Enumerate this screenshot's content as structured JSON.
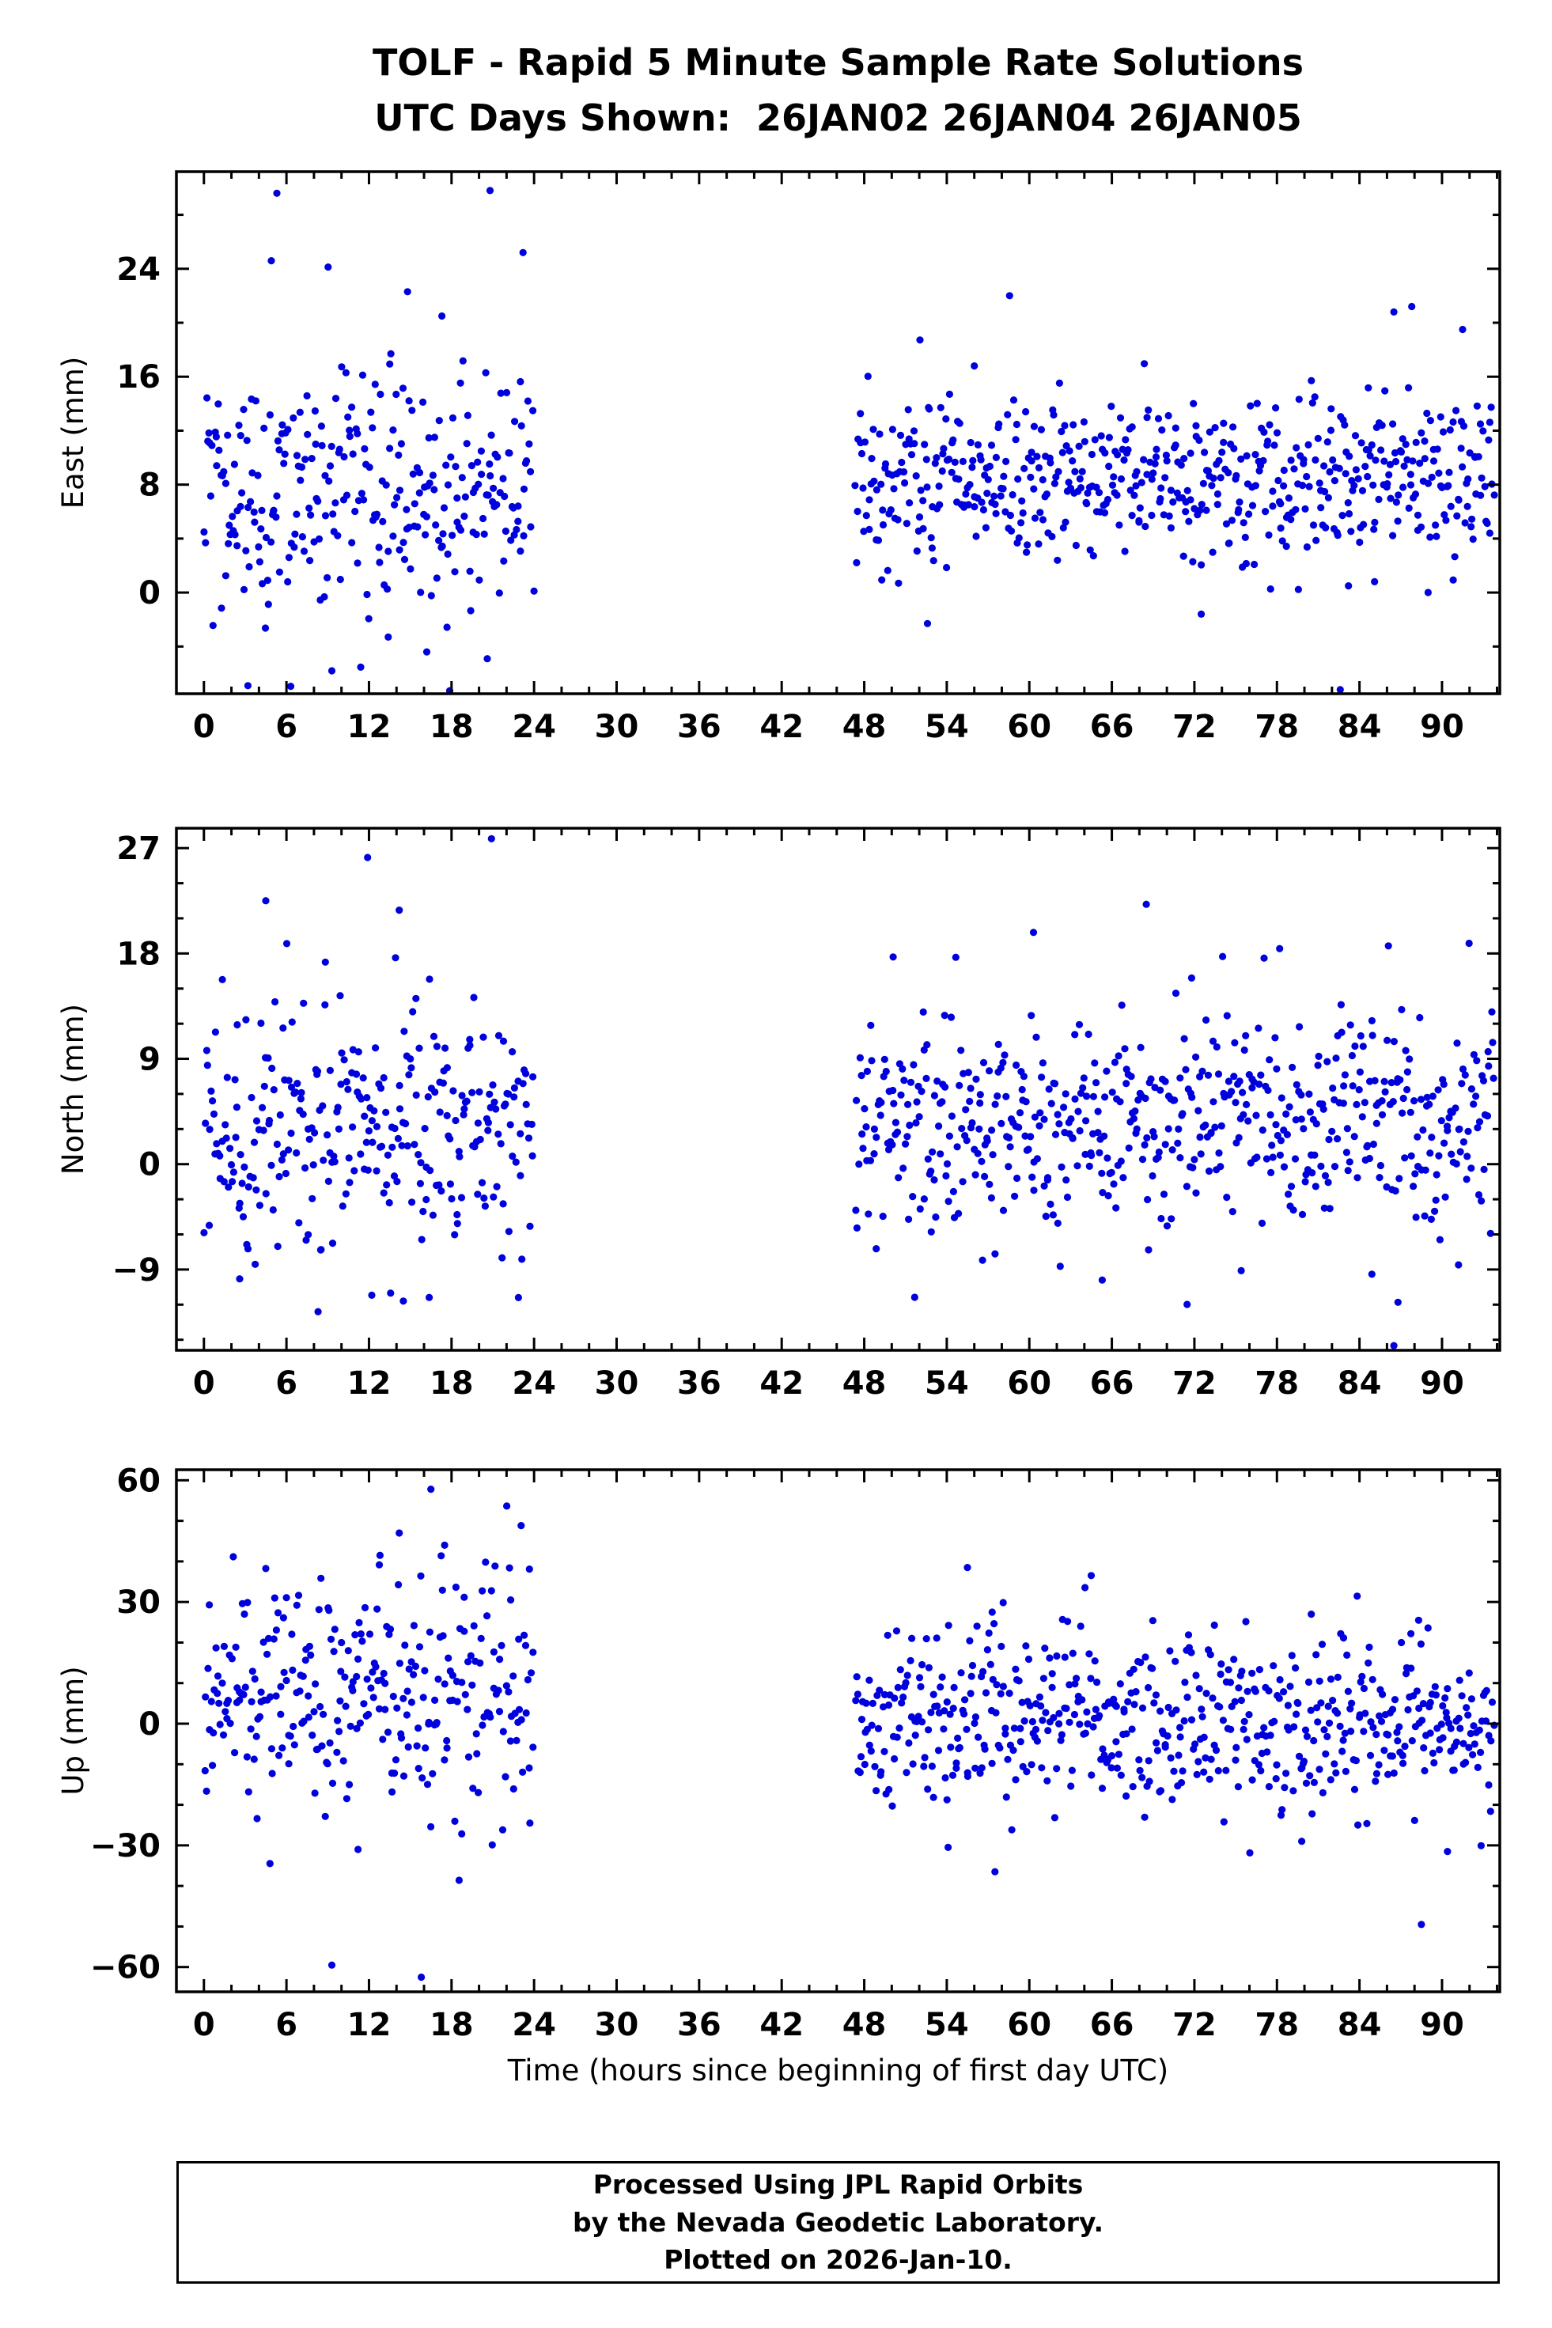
{
  "title": "TOLF - Rapid 5 Minute Sample Rate Solutions",
  "subtitle": "UTC Days Shown:  26JAN02 26JAN04 26JAN05",
  "xlabel": "Time (hours since beginning of first day UTC)",
  "footer": {
    "line1": "Processed Using JPL Rapid Orbits",
    "line2": "by the Nevada Geodetic Laboratory.",
    "line3": "Plotted on 2026-Jan-10."
  },
  "colors": {
    "point": "#0000dd",
    "frame": "#000000",
    "background": "#ffffff",
    "text": "#000000"
  },
  "chart_data": [
    {
      "type": "scatter",
      "panel": "east",
      "ylabel": "East (mm)",
      "ylim": [
        -7.5,
        31.2
      ],
      "yticks": [
        0,
        8,
        16,
        24
      ],
      "yminor": 4,
      "xlim": [
        -2.0,
        94.2
      ],
      "xticks": [
        0,
        6,
        12,
        18,
        24,
        30,
        36,
        42,
        48,
        54,
        60,
        66,
        72,
        78,
        84,
        90
      ],
      "xminor": 2,
      "clusters": [
        {
          "start": 0.0,
          "end": 24.0,
          "n": 288,
          "mean": 7.6,
          "std": 4.5
        },
        {
          "start": 47.3,
          "end": 93.8,
          "n": 560,
          "mean": 8.5,
          "std": 3.1
        }
      ],
      "tail_rate": 0.035,
      "tail_mult": 2.1,
      "seed": 101,
      "outliers": [
        [
          5.3,
          29.6
        ],
        [
          20.8,
          29.8
        ],
        [
          23.2,
          25.2
        ],
        [
          4.9,
          24.6
        ],
        [
          14.8,
          22.3
        ],
        [
          17.3,
          20.5
        ],
        [
          3.2,
          -6.9
        ],
        [
          9.3,
          -5.8
        ],
        [
          16.2,
          -4.4
        ],
        [
          20.6,
          -4.9
        ],
        [
          13.4,
          -3.3
        ],
        [
          52.6,
          -2.3
        ],
        [
          56.0,
          16.8
        ],
        [
          72.5,
          -1.6
        ],
        [
          83.2,
          0.5
        ],
        [
          85.1,
          0.8
        ],
        [
          86.5,
          20.8
        ],
        [
          87.8,
          21.2
        ],
        [
          91.5,
          19.5
        ],
        [
          82.6,
          -7.2
        ]
      ]
    },
    {
      "type": "scatter",
      "panel": "north",
      "ylabel": "North (mm)",
      "ylim": [
        -15.9,
        28.7
      ],
      "yticks": [
        -9,
        0,
        9,
        18,
        27
      ],
      "yminor": 3,
      "xlim": [
        -2.0,
        94.2
      ],
      "xticks": [
        0,
        6,
        12,
        18,
        24,
        30,
        36,
        42,
        48,
        54,
        60,
        66,
        72,
        78,
        84,
        90
      ],
      "xminor": 2,
      "clusters": [
        {
          "start": 0.0,
          "end": 24.0,
          "n": 288,
          "mean": 3.2,
          "std": 5.2
        },
        {
          "start": 47.3,
          "end": 93.8,
          "n": 560,
          "mean": 3.6,
          "std": 4.2
        }
      ],
      "tail_rate": 0.035,
      "tail_mult": 2.0,
      "seed": 202,
      "outliers": [
        [
          20.9,
          27.8
        ],
        [
          11.9,
          26.2
        ],
        [
          4.5,
          22.5
        ],
        [
          14.2,
          21.7
        ],
        [
          16.4,
          15.8
        ],
        [
          12.2,
          -11.2
        ],
        [
          14.5,
          -11.7
        ],
        [
          8.3,
          -12.6
        ],
        [
          2.6,
          -9.8
        ],
        [
          68.5,
          22.2
        ],
        [
          60.3,
          19.8
        ],
        [
          50.1,
          17.7
        ],
        [
          71.8,
          15.9
        ],
        [
          86.5,
          -15.5
        ],
        [
          86.8,
          -11.8
        ],
        [
          84.9,
          -9.4
        ],
        [
          91.2,
          -8.6
        ],
        [
          75.4,
          -9.1
        ],
        [
          56.6,
          -8.2
        ],
        [
          65.3,
          -9.9
        ]
      ]
    },
    {
      "type": "scatter",
      "panel": "up",
      "ylabel": "Up (mm)",
      "ylim": [
        -66.1,
        62.6
      ],
      "yticks": [
        -60,
        -30,
        0,
        30,
        60
      ],
      "yminor": 10,
      "xlim": [
        -2.0,
        94.2
      ],
      "xticks": [
        0,
        6,
        12,
        18,
        24,
        30,
        36,
        42,
        48,
        54,
        60,
        66,
        72,
        78,
        84,
        90
      ],
      "xminor": 2,
      "clusters": [
        {
          "start": 0.0,
          "end": 24.0,
          "n": 288,
          "mean": 8.0,
          "std": 13.5
        },
        {
          "start": 47.3,
          "end": 93.8,
          "n": 560,
          "mean": 0.5,
          "std": 10.5
        }
      ],
      "tail_rate": 0.03,
      "tail_mult": 1.8,
      "seed": 303,
      "outliers": [
        [
          16.5,
          57.8
        ],
        [
          14.2,
          47.0
        ],
        [
          17.5,
          44.0
        ],
        [
          12.8,
          41.5
        ],
        [
          22.3,
          30.5
        ],
        [
          9.3,
          -59.5
        ],
        [
          15.8,
          -62.5
        ],
        [
          4.8,
          -34.5
        ],
        [
          11.2,
          -31.0
        ],
        [
          23.7,
          -24.5
        ],
        [
          55.5,
          38.5
        ],
        [
          64.5,
          36.5
        ],
        [
          57.3,
          27.5
        ],
        [
          80.5,
          27.0
        ],
        [
          88.3,
          25.5
        ],
        [
          88.5,
          -49.5
        ],
        [
          57.5,
          -36.5
        ],
        [
          54.1,
          -30.5
        ],
        [
          79.8,
          -29.0
        ],
        [
          90.4,
          -31.5
        ]
      ]
    }
  ]
}
